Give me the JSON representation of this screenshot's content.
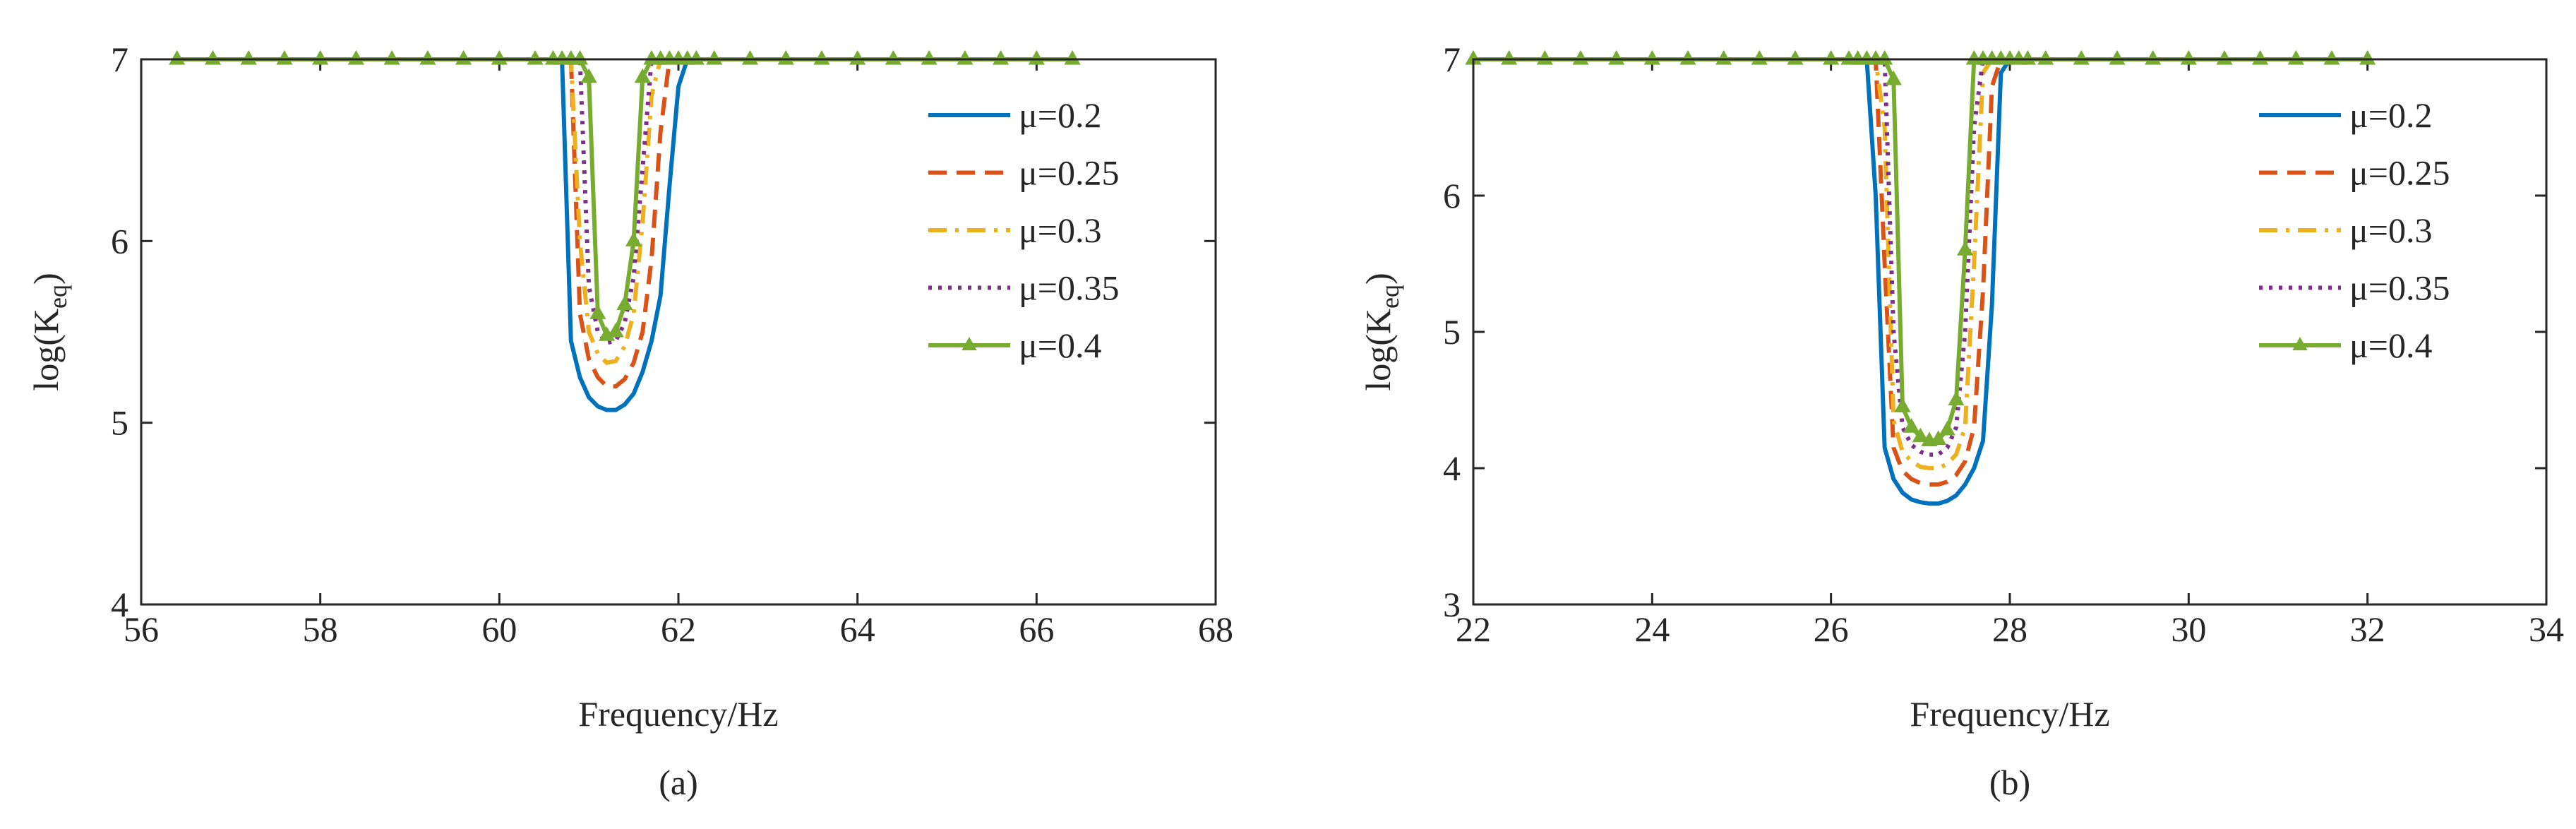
{
  "chart_data": [
    {
      "type": "line",
      "label": "(a)",
      "xlabel": "Frequency/Hz",
      "ylabel": [
        "log(K",
        "eq",
        ")"
      ],
      "x": [
        56.4,
        56.8,
        57.2,
        57.6,
        58.0,
        58.4,
        58.8,
        59.2,
        59.6,
        60.0,
        60.4,
        60.6,
        60.7,
        60.8,
        60.9,
        61.0,
        61.1,
        61.2,
        61.3,
        61.4,
        61.5,
        61.6,
        61.7,
        61.8,
        61.9,
        62.0,
        62.1,
        62.2,
        62.4,
        62.8,
        63.2,
        63.6,
        64.0,
        64.4,
        64.8,
        65.2,
        65.6,
        66.0,
        66.4
      ],
      "xlim": [
        56,
        68
      ],
      "xticks": [
        56,
        58,
        60,
        62,
        64,
        66,
        68
      ],
      "ylim": [
        4,
        7
      ],
      "yticks": [
        4,
        5,
        6,
        7
      ],
      "legend": "upper right",
      "series": [
        {
          "name": "μ=0.2",
          "color": "#0072BD",
          "linestyle": "solid",
          "values": [
            7,
            7,
            7,
            7,
            7,
            7,
            7,
            7,
            7,
            7,
            7,
            7,
            7,
            5.45,
            5.25,
            5.14,
            5.09,
            5.07,
            5.07,
            5.1,
            5.16,
            5.28,
            5.45,
            5.7,
            6.3,
            6.85,
            7,
            7,
            7,
            7,
            7,
            7,
            7,
            7,
            7,
            7,
            7,
            7,
            7
          ]
        },
        {
          "name": "μ=0.25",
          "color": "#D95319",
          "linestyle": "dashed",
          "values": [
            7,
            7,
            7,
            7,
            7,
            7,
            7,
            7,
            7,
            7,
            7,
            7,
            7,
            7,
            5.6,
            5.35,
            5.25,
            5.2,
            5.2,
            5.24,
            5.33,
            5.5,
            5.9,
            6.6,
            7,
            7,
            7,
            7,
            7,
            7,
            7,
            7,
            7,
            7,
            7,
            7,
            7,
            7,
            7
          ]
        },
        {
          "name": "μ=0.3",
          "color": "#EDB120",
          "linestyle": "dashdot",
          "values": [
            7,
            7,
            7,
            7,
            7,
            7,
            7,
            7,
            7,
            7,
            7,
            7,
            7,
            7,
            6.0,
            5.5,
            5.38,
            5.33,
            5.34,
            5.42,
            5.6,
            6.1,
            6.8,
            7,
            7,
            7,
            7,
            7,
            7,
            7,
            7,
            7,
            7,
            7,
            7,
            7,
            7,
            7,
            7
          ]
        },
        {
          "name": "μ=0.35",
          "color": "#7E2F8E",
          "linestyle": "dotted",
          "values": [
            7,
            7,
            7,
            7,
            7,
            7,
            7,
            7,
            7,
            7,
            7,
            7,
            7,
            7,
            7,
            5.75,
            5.5,
            5.44,
            5.45,
            5.55,
            5.8,
            6.4,
            7,
            7,
            7,
            7,
            7,
            7,
            7,
            7,
            7,
            7,
            7,
            7,
            7,
            7,
            7,
            7,
            7
          ]
        },
        {
          "name": "μ=0.4",
          "color": "#77AC30",
          "linestyle": "solid",
          "marker": "triangle",
          "values": [
            7,
            7,
            7,
            7,
            7,
            7,
            7,
            7,
            7,
            7,
            7,
            7,
            7,
            7,
            7,
            6.9,
            5.6,
            5.48,
            5.5,
            5.65,
            6.0,
            6.9,
            7,
            7,
            7,
            7,
            7,
            7,
            7,
            7,
            7,
            7,
            7,
            7,
            7,
            7,
            7,
            7,
            7
          ]
        }
      ]
    },
    {
      "type": "line",
      "label": "(b)",
      "xlabel": "Frequency/Hz",
      "ylabel": [
        "log(K",
        "eq",
        ")"
      ],
      "x": [
        22.0,
        22.4,
        22.8,
        23.2,
        23.6,
        24.0,
        24.4,
        24.8,
        25.2,
        25.6,
        26.0,
        26.2,
        26.3,
        26.4,
        26.5,
        26.6,
        26.7,
        26.8,
        26.9,
        27.0,
        27.1,
        27.2,
        27.3,
        27.4,
        27.5,
        27.6,
        27.7,
        27.8,
        27.9,
        28.0,
        28.1,
        28.2,
        28.4,
        28.8,
        29.2,
        29.6,
        30.0,
        30.4,
        30.8,
        31.2,
        31.6,
        32.0
      ],
      "xlim": [
        22,
        34
      ],
      "xticks": [
        22,
        24,
        26,
        28,
        30,
        32,
        34
      ],
      "ylim": [
        3,
        7
      ],
      "yticks": [
        3,
        4,
        5,
        6,
        7
      ],
      "legend": "upper right",
      "series": [
        {
          "name": "μ=0.2",
          "color": "#0072BD",
          "linestyle": "solid",
          "values": [
            7,
            7,
            7,
            7,
            7,
            7,
            7,
            7,
            7,
            7,
            7,
            7,
            7,
            7,
            6.0,
            4.15,
            3.92,
            3.82,
            3.77,
            3.75,
            3.74,
            3.74,
            3.76,
            3.8,
            3.88,
            4.0,
            4.2,
            5.2,
            6.9,
            7,
            7,
            7,
            7,
            7,
            7,
            7,
            7,
            7,
            7,
            7,
            7,
            7
          ]
        },
        {
          "name": "μ=0.25",
          "color": "#D95319",
          "linestyle": "dashed",
          "values": [
            7,
            7,
            7,
            7,
            7,
            7,
            7,
            7,
            7,
            7,
            7,
            7,
            7,
            7,
            7,
            5.5,
            4.15,
            3.98,
            3.92,
            3.89,
            3.88,
            3.88,
            3.9,
            3.95,
            4.05,
            4.3,
            5.3,
            6.8,
            7,
            7,
            7,
            7,
            7,
            7,
            7,
            7,
            7,
            7,
            7,
            7,
            7,
            7
          ]
        },
        {
          "name": "μ=0.3",
          "color": "#EDB120",
          "linestyle": "dashdot",
          "values": [
            7,
            7,
            7,
            7,
            7,
            7,
            7,
            7,
            7,
            7,
            7,
            7,
            7,
            7,
            7,
            6.5,
            4.35,
            4.12,
            4.05,
            4.01,
            4.0,
            4.0,
            4.03,
            4.1,
            4.3,
            5.5,
            6.9,
            7,
            7,
            7,
            7,
            7,
            7,
            7,
            7,
            7,
            7,
            7,
            7,
            7,
            7,
            7
          ]
        },
        {
          "name": "μ=0.35",
          "color": "#7E2F8E",
          "linestyle": "dotted",
          "values": [
            7,
            7,
            7,
            7,
            7,
            7,
            7,
            7,
            7,
            7,
            7,
            7,
            7,
            7,
            7,
            7,
            5.0,
            4.3,
            4.17,
            4.12,
            4.1,
            4.1,
            4.15,
            4.3,
            5.0,
            6.5,
            7,
            7,
            7,
            7,
            7,
            7,
            7,
            7,
            7,
            7,
            7,
            7,
            7,
            7,
            7,
            7
          ]
        },
        {
          "name": "μ=0.4",
          "color": "#77AC30",
          "linestyle": "solid",
          "marker": "triangle",
          "values": [
            7,
            7,
            7,
            7,
            7,
            7,
            7,
            7,
            7,
            7,
            7,
            7,
            7,
            7,
            7,
            7,
            6.85,
            4.45,
            4.3,
            4.23,
            4.2,
            4.21,
            4.28,
            4.5,
            5.6,
            7,
            7,
            7,
            7,
            7,
            7,
            7,
            7,
            7,
            7,
            7,
            7,
            7,
            7,
            7,
            7,
            7
          ]
        }
      ]
    }
  ]
}
